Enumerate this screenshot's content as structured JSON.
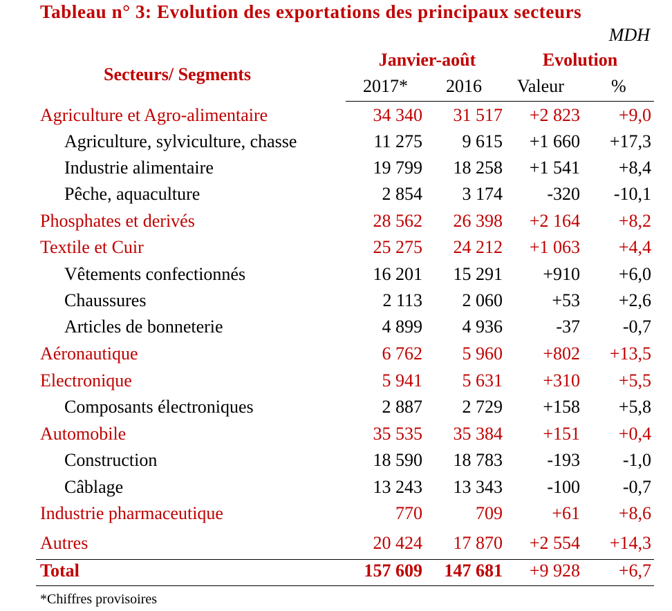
{
  "title": "Tableau n° 3: Evolution des exportations des principaux secteurs",
  "unit": "MDH",
  "header": {
    "segments": "Secteurs/ Segments",
    "period": "Janvier-août",
    "evolution": "Evolution",
    "col_2017": "2017*",
    "col_2016": "2016",
    "col_valeur": "Valeur",
    "col_pct": "%"
  },
  "rows": [
    {
      "label": "Agriculture et Agro-alimentaire",
      "v2017": "34 340",
      "v2016": "31 517",
      "valeur": "+2 823",
      "pct": "+9,0"
    },
    {
      "label": "Agriculture, sylviculture, chasse",
      "v2017": "11 275",
      "v2016": "9 615",
      "valeur": "+1 660",
      "pct": "+17,3"
    },
    {
      "label": "Industrie alimentaire",
      "v2017": "19 799",
      "v2016": "18 258",
      "valeur": "+1 541",
      "pct": "+8,4"
    },
    {
      "label": "Pêche, aquaculture",
      "v2017": "2 854",
      "v2016": "3 174",
      "valeur": "-320",
      "pct": "-10,1"
    },
    {
      "label": "Phosphates et derivés",
      "v2017": "28 562",
      "v2016": "26 398",
      "valeur": "+2 164",
      "pct": "+8,2"
    },
    {
      "label": "Textile et Cuir",
      "v2017": "25 275",
      "v2016": "24 212",
      "valeur": "+1 063",
      "pct": "+4,4"
    },
    {
      "label": "Vêtements confectionnés",
      "v2017": "16 201",
      "v2016": "15 291",
      "valeur": "+910",
      "pct": "+6,0"
    },
    {
      "label": "Chaussures",
      "v2017": "2 113",
      "v2016": "2 060",
      "valeur": "+53",
      "pct": "+2,6"
    },
    {
      "label": "Articles de bonneterie",
      "v2017": "4 899",
      "v2016": "4 936",
      "valeur": "-37",
      "pct": "-0,7"
    },
    {
      "label": "Aéronautique",
      "v2017": "6 762",
      "v2016": "5 960",
      "valeur": "+802",
      "pct": "+13,5"
    },
    {
      "label": "Electronique",
      "v2017": "5 941",
      "v2016": "5 631",
      "valeur": "+310",
      "pct": "+5,5"
    },
    {
      "label": "Composants électroniques",
      "v2017": "2 887",
      "v2016": "2 729",
      "valeur": "+158",
      "pct": "+5,8"
    },
    {
      "label": "Automobile",
      "v2017": "35 535",
      "v2016": "35 384",
      "valeur": "+151",
      "pct": "+0,4"
    },
    {
      "label": "Construction",
      "v2017": "18 590",
      "v2016": "18 783",
      "valeur": "-193",
      "pct": "-1,0"
    },
    {
      "label": "Câblage",
      "v2017": "13 243",
      "v2016": "13 343",
      "valeur": "-100",
      "pct": "-0,7"
    },
    {
      "label": "Industrie pharmaceutique",
      "v2017": "770",
      "v2016": "709",
      "valeur": "+61",
      "pct": "+8,6"
    },
    {
      "label": "Autres",
      "v2017": "20 424",
      "v2016": "17 870",
      "valeur": "+2 554",
      "pct": "+14,3"
    }
  ],
  "total": {
    "label": "Total",
    "v2017": "157 609",
    "v2016": "147 681",
    "valeur": "+9 928",
    "pct": "+6,7"
  },
  "footnote": "*Chiffres provisoires",
  "colors": {
    "accent": "#c00000",
    "text": "#000000"
  }
}
